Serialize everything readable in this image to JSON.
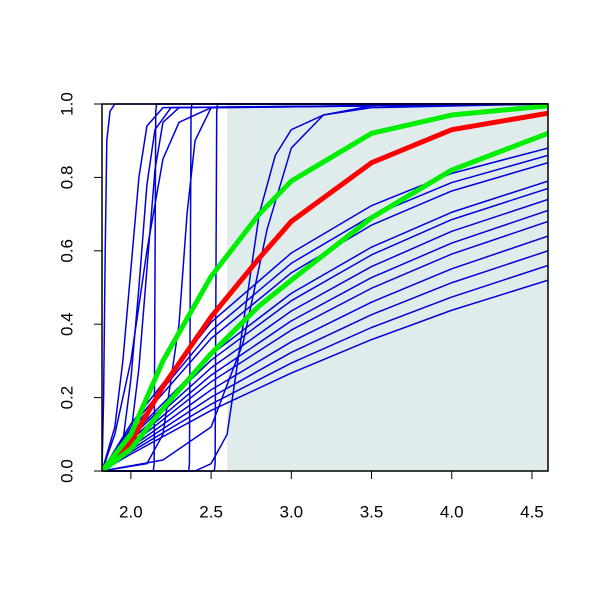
{
  "chart_data": {
    "type": "line",
    "xlim": [
      1.82,
      4.6
    ],
    "ylim": [
      0,
      1
    ],
    "xticks": [
      {
        "value": 2,
        "label": "2.0"
      },
      2.5,
      {
        "value": 3,
        "label": "3.0"
      },
      3.5,
      {
        "value": 4,
        "label": "4.0"
      },
      4.5
    ],
    "yticks": [
      {
        "value": 0,
        "label": "0.0"
      },
      0.2,
      0.4,
      0.6,
      0.8,
      {
        "value": 1,
        "label": "1.0"
      }
    ],
    "shaded_x": [
      2.6,
      4.6
    ],
    "shade_color": "#e0ecec",
    "series": [
      {
        "color": "#0000dd",
        "line_width": 1.5,
        "x": [
          1.82,
          1.83,
          1.84,
          1.85,
          1.87,
          1.9,
          4.6
        ],
        "values": [
          0,
          0.2,
          0.6,
          0.9,
          0.98,
          1,
          1
        ]
      },
      {
        "color": "#0000dd",
        "line_width": 1.5,
        "x": [
          1.82,
          1.9,
          1.95,
          2.0,
          2.05,
          2.1,
          2.2,
          4.6
        ],
        "values": [
          0,
          0.12,
          0.3,
          0.55,
          0.8,
          0.94,
          0.99,
          1
        ]
      },
      {
        "color": "#0000dd",
        "line_width": 1.5,
        "x": [
          1.82,
          1.95,
          2.0,
          2.05,
          2.1,
          2.15,
          2.25,
          4.6
        ],
        "values": [
          0,
          0.08,
          0.25,
          0.5,
          0.78,
          0.93,
          0.99,
          1
        ]
      },
      {
        "color": "#0000dd",
        "line_width": 1.5,
        "x": [
          1.82,
          2.0,
          2.05,
          2.1,
          2.15,
          2.2,
          2.3,
          4.6
        ],
        "values": [
          0,
          0.1,
          0.28,
          0.55,
          0.82,
          0.95,
          0.99,
          1
        ]
      },
      {
        "color": "#0000dd",
        "line_width": 1.5,
        "x": [
          1.82,
          1.9,
          2.0,
          2.1,
          2.2,
          2.3,
          2.5,
          4.6
        ],
        "values": [
          0,
          0.1,
          0.3,
          0.6,
          0.85,
          0.95,
          0.99,
          1
        ]
      },
      {
        "color": "#0000dd",
        "line_width": 1.5,
        "x": [
          1.82,
          2.14,
          2.145,
          2.15,
          2.155,
          2.16,
          4.6
        ],
        "values": [
          0,
          0,
          0.02,
          0.5,
          0.98,
          1,
          1
        ]
      },
      {
        "color": "#0000dd",
        "line_width": 1.5,
        "x": [
          1.82,
          2.36,
          2.365,
          2.37,
          2.375,
          2.38,
          4.6
        ],
        "values": [
          0,
          0,
          0.02,
          0.5,
          0.98,
          1,
          1
        ]
      },
      {
        "color": "#0000dd",
        "line_width": 1.5,
        "x": [
          1.82,
          2.52,
          2.525,
          2.53,
          2.535,
          2.54,
          4.6
        ],
        "values": [
          0,
          0,
          0.02,
          0.5,
          0.98,
          1,
          1
        ]
      },
      {
        "color": "#0000dd",
        "line_width": 1.5,
        "x": [
          1.82,
          2.1,
          2.2,
          2.3,
          2.35,
          2.4,
          2.5,
          4.6
        ],
        "values": [
          0,
          0.02,
          0.1,
          0.4,
          0.7,
          0.9,
          0.99,
          1
        ]
      },
      {
        "color": "#0000dd",
        "line_width": 1.5,
        "x": [
          1.82,
          2.4,
          2.5,
          2.6,
          2.7,
          2.8,
          2.9,
          3.0,
          3.2,
          3.5,
          4.6
        ],
        "values": [
          0,
          0,
          0.02,
          0.1,
          0.4,
          0.7,
          0.86,
          0.93,
          0.97,
          0.99,
          1
        ]
      },
      {
        "color": "#0000dd",
        "line_width": 1.5,
        "x": [
          1.82,
          2.2,
          2.5,
          2.7,
          2.85,
          3.0,
          3.2,
          3.5,
          4.6
        ],
        "values": [
          0,
          0.03,
          0.12,
          0.35,
          0.66,
          0.88,
          0.97,
          0.995,
          1
        ]
      },
      {
        "color": "#0000dd",
        "line_width": 1.5,
        "x": [
          1.82,
          2.0,
          2.5,
          3.0,
          3.5,
          4.0,
          4.6
        ],
        "values": [
          0,
          0.046,
          0.165,
          0.267,
          0.358,
          0.438,
          0.52
        ]
      },
      {
        "color": "#0000dd",
        "line_width": 1.5,
        "x": [
          1.82,
          2.0,
          2.5,
          3.0,
          3.5,
          4.0,
          4.6
        ],
        "values": [
          0,
          0.052,
          0.182,
          0.294,
          0.391,
          0.474,
          0.56
        ]
      },
      {
        "color": "#0000dd",
        "line_width": 1.5,
        "x": [
          1.82,
          2.0,
          2.5,
          3.0,
          3.5,
          4.0,
          4.6
        ],
        "values": [
          0,
          0.058,
          0.201,
          0.323,
          0.426,
          0.513,
          0.6
        ]
      },
      {
        "color": "#0000dd",
        "line_width": 1.5,
        "x": [
          1.82,
          2.0,
          2.5,
          3.0,
          3.5,
          4.0,
          4.6
        ],
        "values": [
          0,
          0.064,
          0.221,
          0.352,
          0.46,
          0.551,
          0.64
        ]
      },
      {
        "color": "#0000dd",
        "line_width": 1.5,
        "x": [
          1.82,
          2.0,
          2.5,
          3.0,
          3.5,
          4.0,
          4.6
        ],
        "values": [
          0,
          0.071,
          0.243,
          0.384,
          0.498,
          0.591,
          0.68
        ]
      },
      {
        "color": "#0000dd",
        "line_width": 1.5,
        "x": [
          1.82,
          2.0,
          2.5,
          3.0,
          3.5,
          4.0,
          4.6
        ],
        "values": [
          0,
          0.077,
          0.261,
          0.409,
          0.527,
          0.621,
          0.71
        ]
      },
      {
        "color": "#0000dd",
        "line_width": 1.5,
        "x": [
          1.82,
          2.0,
          2.5,
          3.0,
          3.5,
          4.0,
          4.6
        ],
        "values": [
          0,
          0.084,
          0.281,
          0.436,
          0.557,
          0.653,
          0.74
        ]
      },
      {
        "color": "#0000dd",
        "line_width": 1.5,
        "x": [
          1.82,
          2.0,
          2.5,
          3.0,
          3.5,
          4.0,
          4.6
        ],
        "values": [
          0,
          0.091,
          0.302,
          0.464,
          0.589,
          0.685,
          0.77
        ]
      },
      {
        "color": "#0000dd",
        "line_width": 1.5,
        "x": [
          1.82,
          2.0,
          2.5,
          3.0,
          3.5,
          4.0,
          4.6
        ],
        "values": [
          0,
          0.096,
          0.317,
          0.484,
          0.61,
          0.705,
          0.79
        ]
      },
      {
        "color": "#0000dd",
        "line_width": 1.5,
        "x": [
          1.82,
          2.0,
          2.5,
          3.0,
          3.5,
          4.0,
          4.6
        ],
        "values": [
          0,
          0.112,
          0.361,
          0.54,
          0.67,
          0.763,
          0.84
        ]
      },
      {
        "color": "#0000dd",
        "line_width": 1.5,
        "x": [
          1.82,
          2.0,
          2.5,
          3.0,
          3.5,
          4.0,
          4.6
        ],
        "values": [
          0,
          0.119,
          0.382,
          0.566,
          0.695,
          0.786,
          0.86
        ]
      },
      {
        "color": "#0000dd",
        "line_width": 1.5,
        "x": [
          1.82,
          2.0,
          2.5,
          3.0,
          3.5,
          4.0,
          4.6
        ],
        "values": [
          0,
          0.128,
          0.405,
          0.594,
          0.723,
          0.811,
          0.88
        ]
      },
      {
        "color": "#ff0000",
        "line_width": 5,
        "x": [
          1.82,
          2.0,
          2.2,
          2.5,
          2.8,
          3.0,
          3.5,
          4.0,
          4.6
        ],
        "values": [
          0,
          0.08,
          0.23,
          0.42,
          0.58,
          0.68,
          0.84,
          0.93,
          0.975
        ]
      },
      {
        "color": "#00ee00",
        "line_width": 5,
        "x": [
          1.82,
          2.0,
          2.2,
          2.5,
          2.8,
          3.0,
          3.5,
          4.0,
          4.6
        ],
        "values": [
          0,
          0.1,
          0.3,
          0.53,
          0.7,
          0.79,
          0.92,
          0.97,
          0.995
        ]
      },
      {
        "color": "#00ee00",
        "line_width": 5,
        "x": [
          1.82,
          2.0,
          2.2,
          2.5,
          2.8,
          3.0,
          3.5,
          4.0,
          4.6
        ],
        "values": [
          0,
          0.06,
          0.17,
          0.32,
          0.45,
          0.52,
          0.69,
          0.82,
          0.92
        ]
      }
    ]
  }
}
